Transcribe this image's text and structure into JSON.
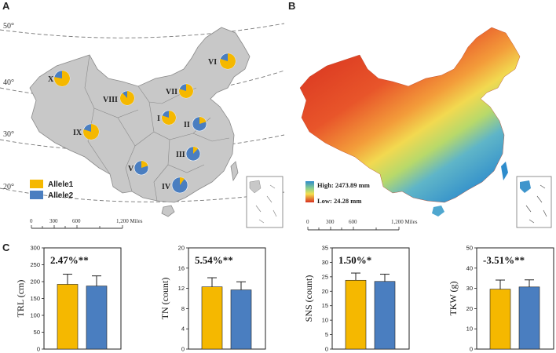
{
  "panels": {
    "a": "A",
    "b": "B",
    "c": "C"
  },
  "colors": {
    "allele1": "#F5B800",
    "allele2": "#4A7EC0",
    "land": "#C8C8C8",
    "border": "#8A8A8A"
  },
  "map_a": {
    "latitudes": [
      "50°",
      "40°",
      "30°",
      "20°"
    ],
    "regions": [
      {
        "label": "X",
        "allele1_pct": 78
      },
      {
        "label": "VI",
        "allele1_pct": 80
      },
      {
        "label": "VII",
        "allele1_pct": 80
      },
      {
        "label": "VIII",
        "allele1_pct": 88
      },
      {
        "label": "I",
        "allele1_pct": 80
      },
      {
        "label": "II",
        "allele1_pct": 20
      },
      {
        "label": "IX",
        "allele1_pct": 80
      },
      {
        "label": "III",
        "allele1_pct": 12
      },
      {
        "label": "V",
        "allele1_pct": 20
      },
      {
        "label": "IV",
        "allele1_pct": 10
      }
    ],
    "legend": [
      "Allele1",
      "Allele2"
    ],
    "scale": [
      "0",
      "300",
      "600",
      "1,200 Miles"
    ]
  },
  "map_b": {
    "legend_high": "High: 2473.89 mm",
    "legend_low": "Low: 24.28 mm",
    "scale": [
      "0",
      "300",
      "600",
      "1,200 Miles"
    ]
  },
  "chart_data": [
    {
      "type": "bar",
      "ylabel": "TRL (cm)",
      "ylim": [
        0,
        300
      ],
      "ticks": [
        "0",
        "50",
        "100",
        "150",
        "200",
        "250",
        "300"
      ],
      "annotation": "2.47%**",
      "categories": [
        "Allele1",
        "Allele2"
      ],
      "values": [
        192,
        187
      ],
      "errors": [
        30,
        30
      ]
    },
    {
      "type": "bar",
      "ylabel": "TN (count)",
      "ylim": [
        0,
        20
      ],
      "ticks": [
        "0",
        "4",
        "8",
        "12",
        "16",
        "20"
      ],
      "annotation": "5.54%**",
      "categories": [
        "Allele1",
        "Allele2"
      ],
      "values": [
        12.3,
        11.7
      ],
      "errors": [
        1.8,
        1.6
      ]
    },
    {
      "type": "bar",
      "ylabel": "SNS (count)",
      "ylim": [
        0,
        35
      ],
      "ticks": [
        "0",
        "5",
        "10",
        "15",
        "20",
        "25",
        "30",
        "35"
      ],
      "annotation": "1.50%*",
      "categories": [
        "Allele1",
        "Allele2"
      ],
      "values": [
        23.8,
        23.4
      ],
      "errors": [
        2.5,
        2.5
      ]
    },
    {
      "type": "bar",
      "ylabel": "TKW (g)",
      "ylim": [
        0,
        50
      ],
      "ticks": [
        "0",
        "10",
        "20",
        "30",
        "40",
        "50"
      ],
      "annotation": "-3.51%**",
      "categories": [
        "Allele1",
        "Allele2"
      ],
      "values": [
        29.6,
        30.7
      ],
      "errors": [
        4.5,
        3.5
      ]
    }
  ]
}
